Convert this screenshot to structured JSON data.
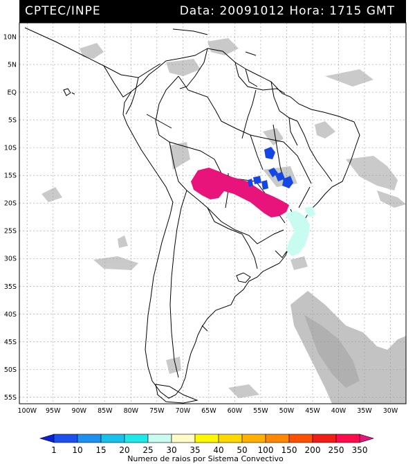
{
  "header": {
    "source": "CPTEC/INPE",
    "datetime": "Data: 20091012 Hora: 1715 GMT"
  },
  "map": {
    "lat_labels": [
      "10N",
      "5N",
      "EQ",
      "5S",
      "10S",
      "15S",
      "20S",
      "25S",
      "30S",
      "35S",
      "40S",
      "45S",
      "50S",
      "55S"
    ],
    "lon_labels": [
      "100W",
      "95W",
      "90W",
      "85W",
      "80W",
      "75W",
      "70W",
      "65W",
      "60W",
      "55W",
      "50W",
      "45W",
      "40W",
      "35W",
      "30W"
    ],
    "lat_values": [
      10,
      5,
      0,
      -5,
      -10,
      -15,
      -20,
      -25,
      -30,
      -35,
      -40,
      -45,
      -50,
      -55
    ],
    "lon_values": [
      -100,
      -95,
      -90,
      -85,
      -80,
      -75,
      -70,
      -65,
      -60,
      -55,
      -50,
      -45,
      -40,
      -35,
      -30
    ]
  },
  "colorbar": {
    "ticks": [
      "1",
      "10",
      "15",
      "20",
      "25",
      "30",
      "35",
      "40",
      "50",
      "100",
      "150",
      "200",
      "250",
      "350"
    ],
    "colors": [
      "#0a1fd8",
      "#1c4ff0",
      "#1e90f0",
      "#18c0ec",
      "#20e8e8",
      "#c8fcf0",
      "#fffcc8",
      "#fff800",
      "#ffd800",
      "#ffb000",
      "#ff8800",
      "#ff5000",
      "#f01e14",
      "#ff0a4a",
      "#e8147c"
    ],
    "title": "Numero de raios por Sistema Convectivo"
  }
}
